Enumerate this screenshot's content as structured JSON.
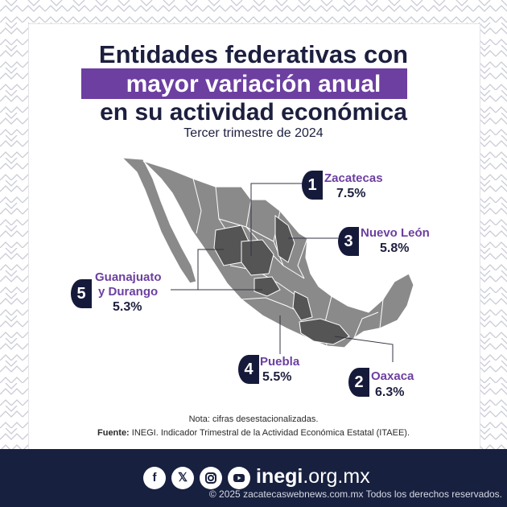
{
  "header": {
    "title_line1": "Entidades federativas con",
    "title_line2": "mayor variación anual",
    "title_line3": "en su actividad económica",
    "subtitle": "Tercer trimestre de 2024"
  },
  "callouts": [
    {
      "rank": "1",
      "state": "Zacatecas",
      "value": "7.5%"
    },
    {
      "rank": "2",
      "state": "Oaxaca",
      "value": "6.3%"
    },
    {
      "rank": "3",
      "state": "Nuevo León",
      "value": "5.8%"
    },
    {
      "rank": "4",
      "state": "Puebla",
      "value": "5.5%"
    },
    {
      "rank": "5",
      "state": "Guanajuato",
      "state_line2": "y Durango",
      "value": "5.3%"
    }
  ],
  "notes": {
    "note": "Nota: cifras desestacionalizadas.",
    "source_label": "Fuente:",
    "source_text": " INEGI. Indicador Trimestral de la Actividad Económica Estatal (ITAEE)."
  },
  "footer": {
    "social_icons": [
      "facebook-icon",
      "x-icon",
      "instagram-icon",
      "youtube-icon"
    ],
    "site_bold": "inegi",
    "site_rest": ".org.mx",
    "copyright": "© 2025 zacatecaswebnews.com.mx Todos los derechos reservados."
  },
  "colors": {
    "navy": "#17203f",
    "purple": "#6c3fa0",
    "map_gray": "#8a8a8a",
    "map_highlight": "#555555"
  }
}
